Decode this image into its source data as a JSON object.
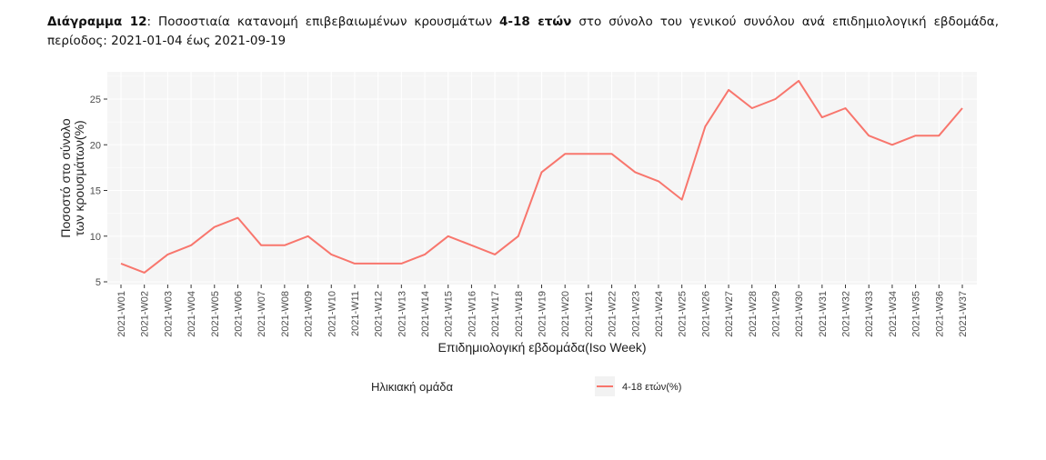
{
  "caption": {
    "label": "Διάγραμμα 12",
    "text_part1": ":  Ποσοστιαία κατανομή επιβεβαιωμένων κρουσμάτων ",
    "bold_part": "4-18 ετών",
    "text_part2": " στο σύνολο του γενικού συνόλου ανά επιδημιολογική εβδομάδα, περίοδος: 2021-01-04 έως 2021-09-19"
  },
  "colors": {
    "line": "#F8766D",
    "panel_bg": "#F5F5F5",
    "grid": "#FFFFFF"
  },
  "chart_data": {
    "type": "line",
    "title": "Ποσοστιαία κατανομή επιβεβαιωμένων κρουσμάτων 4-18 ετών στο σύνολο του γενικού συνόλου ανά επιδημιολογική εβδομάδα, περίοδος: 2021-01-04 έως 2021-09-19",
    "xlabel": "Επιδημιολογική εβδομάδα(Iso Week)",
    "ylabel_line1": "Ποσοστό στο σύνολο",
    "ylabel_line2": "των κρουσμάτων(%)",
    "ylim": [
      5,
      27.5
    ],
    "yticks": [
      5,
      10,
      15,
      20,
      25
    ],
    "grid": true,
    "legend_position": "bottom",
    "legend_title": "Ηλικιακή ομάδα",
    "categories": [
      "2021-W01",
      "2021-W02",
      "2021-W03",
      "2021-W04",
      "2021-W05",
      "2021-W06",
      "2021-W07",
      "2021-W08",
      "2021-W09",
      "2021-W10",
      "2021-W11",
      "2021-W12",
      "2021-W13",
      "2021-W14",
      "2021-W15",
      "2021-W16",
      "2021-W17",
      "2021-W18",
      "2021-W19",
      "2021-W20",
      "2021-W21",
      "2021-W22",
      "2021-W23",
      "2021-W24",
      "2021-W25",
      "2021-W26",
      "2021-W27",
      "2021-W28",
      "2021-W29",
      "2021-W30",
      "2021-W31",
      "2021-W32",
      "2021-W33",
      "2021-W34",
      "2021-W35",
      "2021-W36",
      "2021-W37"
    ],
    "series": [
      {
        "name": "4-18 ετών(%)",
        "values": [
          7,
          6,
          8,
          9,
          11,
          12,
          9,
          9,
          10,
          8,
          7,
          7,
          7,
          8,
          10,
          9,
          8,
          10,
          17,
          19,
          19,
          19,
          17,
          16,
          14,
          22,
          26,
          24,
          25,
          27,
          23,
          24,
          21,
          20,
          21,
          21,
          24
        ]
      }
    ]
  }
}
